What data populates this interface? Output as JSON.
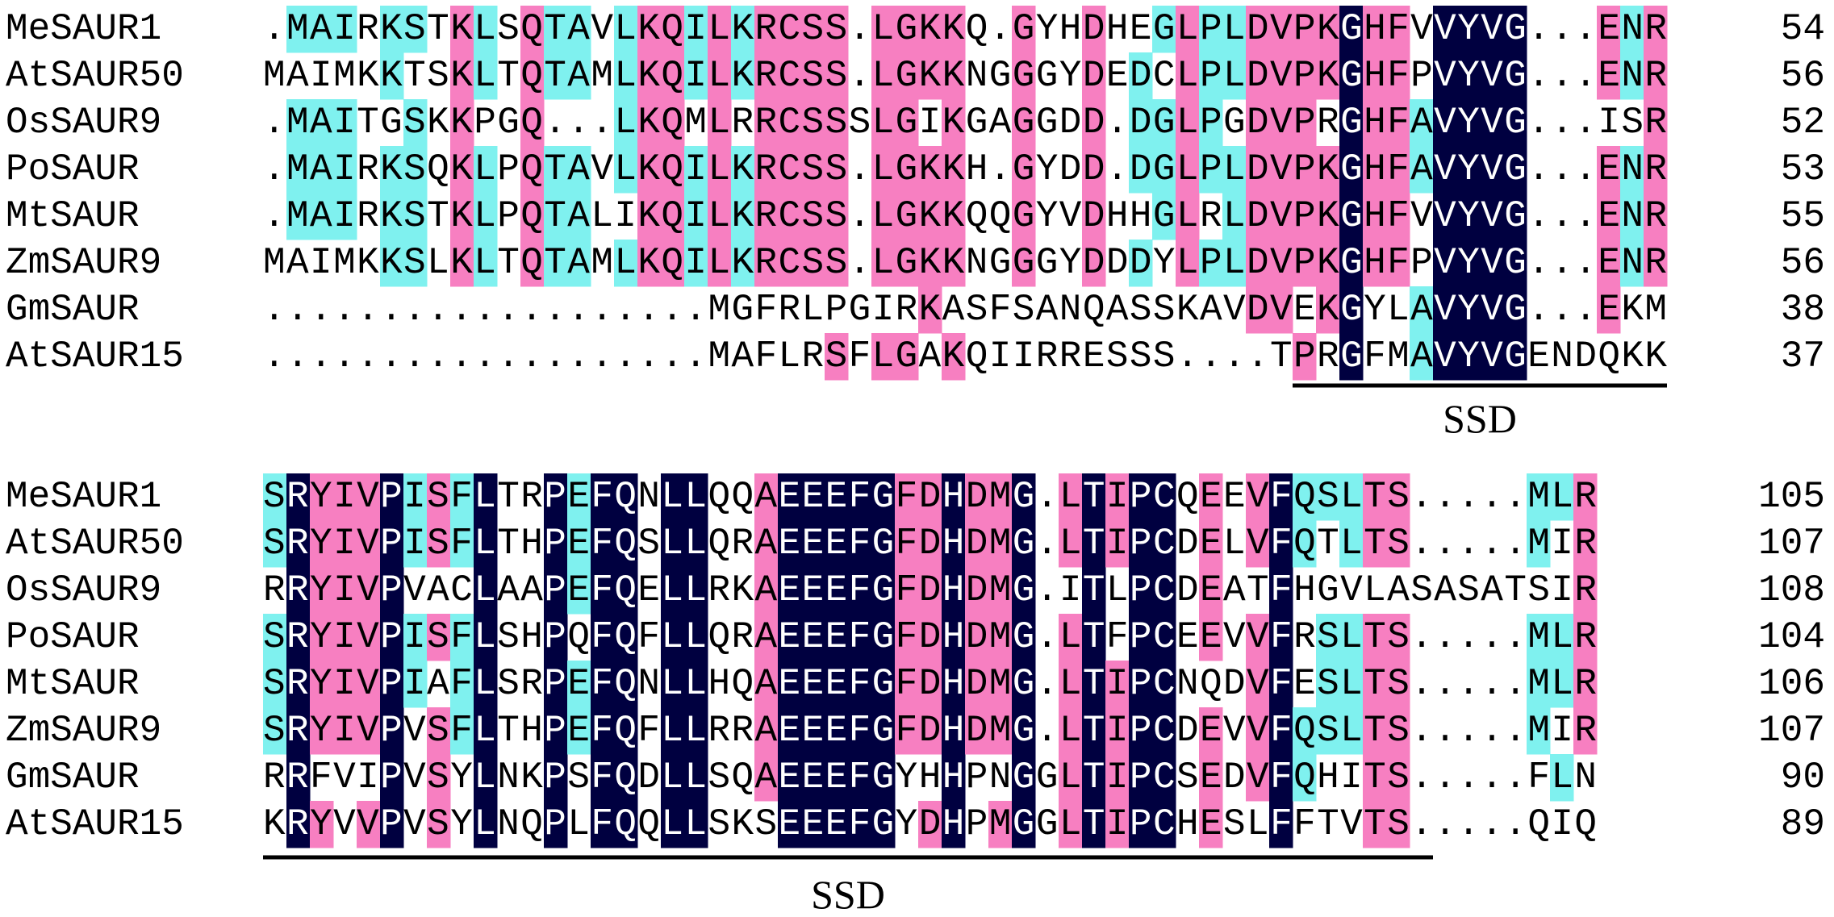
{
  "alignment": {
    "blocks": [
      {
        "rows": [
          {
            "name": "MeSAUR1",
            "sequence": ".MAIRKSTKLSQTAVLKQILKRCSS.LGKKQ.GYHDHEGLPLDVPKGHFVVYVG...ENR",
            "end": 54
          },
          {
            "name": "AtSAUR50",
            "sequence": "MAIMKKTSKLTQTAMLKQILKRCSS.LGKKNGGGYDEDCLPLDVPKGHFPVYVG...ENR",
            "end": 56
          },
          {
            "name": "OsSAUR9",
            "sequence": ".MAITGSKKPGQ...LKQMLRRCSSSLGIKGAGGDD.DGLPGDVPRGHFAVYVG...ISR",
            "end": 52
          },
          {
            "name": "PoSAUR",
            "sequence": ".MAIRKSQKLPQTAVLKQILKRCSS.LGKKH.GYDD.DGLPLDVPKGHFAVYVG...ENR",
            "end": 53
          },
          {
            "name": "MtSAUR",
            "sequence": ".MAIRKSTKLPQTALIKQILKRCSS.LGKKQQGYVDHHGLRLDVPKGHFVVYVG...ENR",
            "end": 55
          },
          {
            "name": "ZmSAUR9",
            "sequence": "MAIMKKSLKLTQTAMLKQILKRCSS.LGKKNGGGYDDDYLPLDVPKGHFPVYVG...ENR",
            "end": 56
          },
          {
            "name": "GmSAUR",
            "sequence": "...................MGFRLPGIRKASFSANQASSKAVDVEKGYLAVYVG...EKM",
            "end": 38
          },
          {
            "name": "AtSAUR15",
            "sequence": "...................MAFLRSFLGAKQIIRRESSS....TPRGFMAVYVGENDQKK",
            "end": 37
          }
        ],
        "annotation": "SSD"
      },
      {
        "rows": [
          {
            "name": "MeSAUR1",
            "sequence": "SRYIVPISFLTRPEFQNLLQQAEEEFGFDHDMG.LTIPCQEEVFQSLTS.....MLR",
            "end": 105
          },
          {
            "name": "AtSAUR50",
            "sequence": "SRYIVPISFLTHPEFQSLLQRAEEEFGFDHDMG.LTIPCDELVFQTLTS.....MIR",
            "end": 107
          },
          {
            "name": "OsSAUR9",
            "sequence": "RRYIVPVACLAAPEFQELLRKAEEEFGFDHDMG.ITLPCDEATFHGVLASASATSIR",
            "end": 108
          },
          {
            "name": "PoSAUR",
            "sequence": "SRYIVPISFLSHPQFQFLLQRAEEEFGFDHDMG.LTFPCEEVVFRSLTS.....MLR",
            "end": 104
          },
          {
            "name": "MtSAUR",
            "sequence": "SRYIVPIAFLSRPEFQNLLHQAEEEFGFDHDMG.LTIPCNQDVFESLTS.....MLR",
            "end": 106
          },
          {
            "name": "ZmSAUR9",
            "sequence": "SRYIVPVSFLTHPEFQFLLRRAEEEFGFDHDMG.LTIPCDEVVFQSLTS.....MIR",
            "end": 107
          },
          {
            "name": "GmSAUR",
            "sequence": "RRFVIPVSYLNKPSFQDLLSQAEEEFGYHHPNGGLTIPCSEDVFQHITS.....FLN",
            "end": 90
          },
          {
            "name": "AtSAUR15",
            "sequence": "KRYVVPVSYLNQPLFQQLLSKSEEEFGYDHPMGGLTIPCHESLFFTVTS.....QIQ",
            "end": 89
          }
        ],
        "annotation": "SSD"
      }
    ]
  }
}
